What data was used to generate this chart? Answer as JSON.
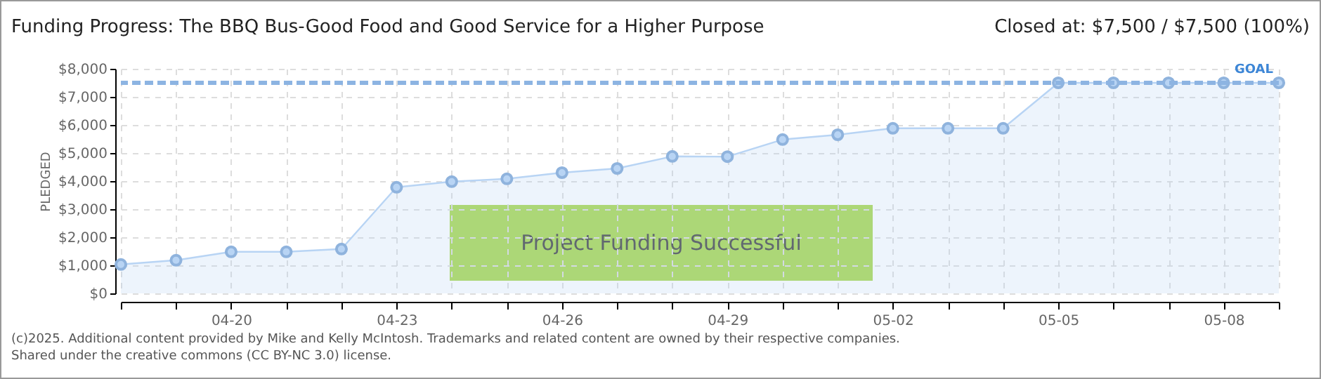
{
  "chart_data": {
    "type": "area",
    "title": "Funding Progress: The BBQ Bus-Good Food and Good Service for a Higher Purpose",
    "subtitle": "Closed at: $7,500 / $7,500 (100%)",
    "ylabel": "PLEDGED",
    "annotations": [
      "Project Funding Successful",
      "(c)2025. Additional content provided by Mike and Kelly McIntosh. Trademarks and related content are owned by their respective companies.",
      "Shared under the creative commons (CC BY-NC 3.0) license."
    ],
    "x": [
      "--04-18",
      "--04-19",
      "--04-20",
      "--04-21",
      "--04-22",
      "--04-23",
      "--04-24",
      "--04-25",
      "--04-26",
      "--04-27",
      "--04-28",
      "--04-29",
      "--04-30",
      "--05-01",
      "--05-02",
      "--05-03",
      "--05-04",
      "--05-05",
      "--05-06",
      "--05-07",
      "--05-08",
      "--05-09"
    ],
    "series": [
      {
        "color": "#b8d4f4",
        "values": [
          1030,
          1180,
          1480,
          1480,
          1580,
          3780,
          3980,
          4080,
          4300,
          4450,
          4880,
          4870,
          5480,
          5650,
          5880,
          5880,
          5880,
          7500,
          7500,
          7500,
          7500,
          7500
        ]
      }
    ],
    "xlim": [
      "--04-18",
      "--05-09"
    ],
    "xticks": [
      {
        "value": "--04-18",
        "label": null
      },
      {
        "value": "--04-19",
        "label": null
      },
      {
        "value": "--04-20",
        "label": "04-20"
      },
      {
        "value": "--04-21",
        "label": null
      },
      {
        "value": "--04-22",
        "label": null
      },
      {
        "value": "--04-23",
        "label": "04-23"
      },
      {
        "value": "--04-24",
        "label": null
      },
      {
        "value": "--04-25",
        "label": null
      },
      {
        "value": "--04-26",
        "label": "04-26"
      },
      {
        "value": "--04-27",
        "label": null
      },
      {
        "value": "--04-28",
        "label": null
      },
      {
        "value": "--04-29",
        "label": "04-29"
      },
      {
        "value": "--04-30",
        "label": null
      },
      {
        "value": "--05-01",
        "label": null
      },
      {
        "value": "--05-02",
        "label": "05-02"
      },
      {
        "value": "--05-03",
        "label": null
      },
      {
        "value": "--05-04",
        "label": null
      },
      {
        "value": "--05-05",
        "label": "05-05"
      },
      {
        "value": "--05-06",
        "label": null
      },
      {
        "value": "--05-07",
        "label": null
      },
      {
        "value": "--05-08",
        "label": "05-08"
      },
      {
        "value": "--05-09",
        "label": null
      }
    ],
    "ylim": [
      0,
      8000
    ],
    "yticks": [
      {
        "value": 0,
        "label": "$0"
      },
      {
        "value": 1000,
        "label": "$1,000"
      },
      {
        "value": 2000,
        "label": "$2,000"
      },
      {
        "value": 3000,
        "label": "$3,000"
      },
      {
        "value": 4000,
        "label": "$4,000"
      },
      {
        "value": 5000,
        "label": "$5,000"
      },
      {
        "value": 6000,
        "label": "$6,000"
      },
      {
        "value": 7000,
        "label": "$7,000"
      },
      {
        "value": 8000,
        "label": "$8,000"
      }
    ],
    "ref_lines": [
      {
        "axis": "y",
        "value": 7500,
        "label": "GOAL",
        "color": "#8db4e2",
        "line_style": "dashed"
      }
    ],
    "grid": true,
    "marker": "circle"
  }
}
